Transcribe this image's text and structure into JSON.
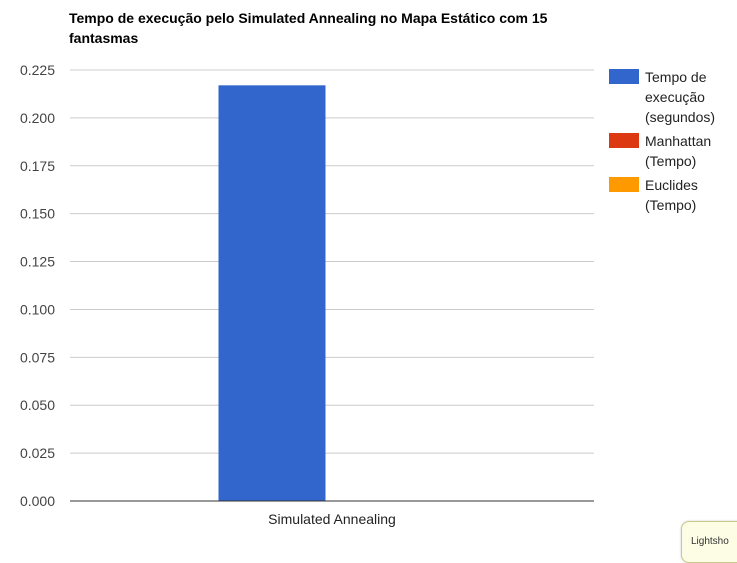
{
  "chart_data": {
    "type": "bar",
    "title_lines": [
      "Tempo de execução pelo Simulated Annealing no Mapa Estático com 15",
      "fantasmas"
    ],
    "categories": [
      "Simulated Annealing"
    ],
    "series": [
      {
        "name_lines": [
          "Tempo de",
          "execução",
          "(segundos)"
        ],
        "color": "#3366cc",
        "values": [
          0.217
        ]
      },
      {
        "name_lines": [
          "Manhattan",
          "(Tempo)"
        ],
        "color": "#dc3912",
        "values": [
          0
        ]
      },
      {
        "name_lines": [
          "Euclides",
          "(Tempo)"
        ],
        "color": "#ff9900",
        "values": [
          0
        ]
      }
    ],
    "yticks": [
      "0.000",
      "0.025",
      "0.050",
      "0.075",
      "0.100",
      "0.125",
      "0.150",
      "0.175",
      "0.200",
      "0.225"
    ],
    "ylim": [
      0,
      0.225
    ],
    "grid": true,
    "legend_position": "right"
  },
  "tooltip_text": "Lightsho"
}
